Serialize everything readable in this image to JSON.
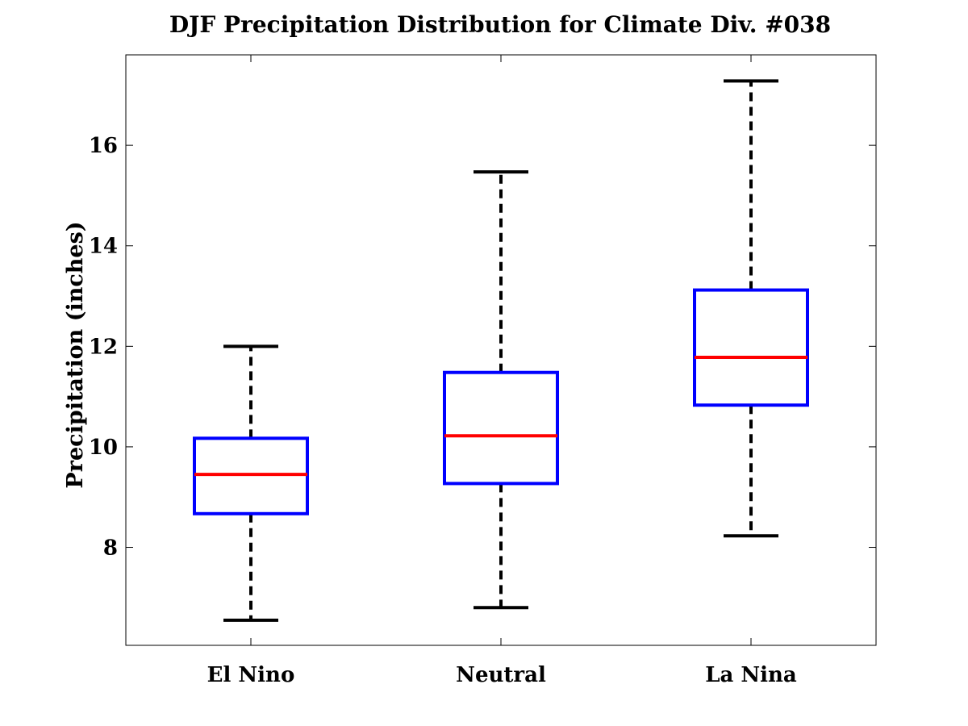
{
  "chart_data": {
    "type": "box",
    "title": "DJF Precipitation Distribution for Climate Div. #038",
    "xlabel": "",
    "ylabel": "Precipitation (inches)",
    "categories": [
      "El Nino",
      "Neutral",
      "La Nina"
    ],
    "boxes": [
      {
        "category": "El Nino",
        "whisker_low": 6.55,
        "q1": 8.67,
        "median": 9.45,
        "q3": 10.17,
        "whisker_high": 12.0
      },
      {
        "category": "Neutral",
        "whisker_low": 6.8,
        "q1": 9.27,
        "median": 10.22,
        "q3": 11.48,
        "whisker_high": 15.47
      },
      {
        "category": "La Nina",
        "whisker_low": 8.23,
        "q1": 10.83,
        "median": 11.78,
        "q3": 13.12,
        "whisker_high": 17.28
      }
    ],
    "yticks": [
      8,
      10,
      12,
      14,
      16
    ],
    "ylim": [
      6.05,
      17.8
    ],
    "grid": false,
    "colors": {
      "box": "#0000ff",
      "median": "#ff0000",
      "whisker": "#000000"
    }
  }
}
